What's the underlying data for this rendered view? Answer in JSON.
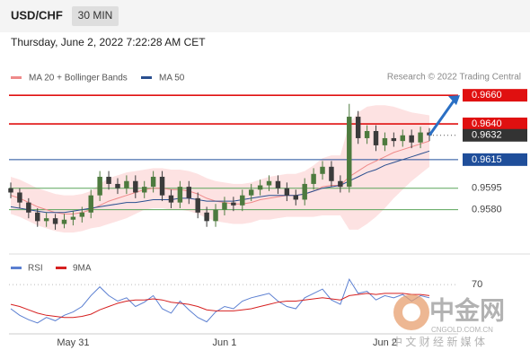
{
  "chart_data": {
    "type": "candlestick",
    "title": "USD/CHF",
    "timeframe": "30 MIN",
    "subtitle": "Thursday, June 2, 2022 7:22:28 AM CET",
    "credit": "Research © 2022 Trading Central",
    "categories": [
      null,
      null,
      null,
      null,
      null,
      null,
      null,
      "May 31",
      null,
      null,
      null,
      null,
      null,
      null,
      null,
      null,
      null,
      null,
      null,
      null,
      null,
      null,
      null,
      null,
      "Jun 1",
      null,
      null,
      null,
      null,
      null,
      null,
      null,
      null,
      null,
      null,
      null,
      null,
      null,
      null,
      null,
      null,
      null,
      "Jun 2",
      null,
      null,
      null,
      null,
      null
    ],
    "candles": [
      [
        0.9595,
        0.9599,
        0.9588,
        0.9592
      ],
      [
        0.9592,
        0.9595,
        0.9581,
        0.9585
      ],
      [
        0.9585,
        0.9588,
        0.9574,
        0.9578
      ],
      [
        0.9578,
        0.9581,
        0.9568,
        0.9572
      ],
      [
        0.9572,
        0.9578,
        0.9568,
        0.9574
      ],
      [
        0.9574,
        0.9577,
        0.9566,
        0.957
      ],
      [
        0.957,
        0.9577,
        0.9567,
        0.9573
      ],
      [
        0.9573,
        0.9579,
        0.9569,
        0.9575
      ],
      [
        0.9575,
        0.9582,
        0.9571,
        0.9578
      ],
      [
        0.9578,
        0.9594,
        0.9574,
        0.959
      ],
      [
        0.959,
        0.9607,
        0.9586,
        0.9603
      ],
      [
        0.9603,
        0.9607,
        0.9594,
        0.9598
      ],
      [
        0.9598,
        0.9602,
        0.9591,
        0.9595
      ],
      [
        0.9595,
        0.9604,
        0.9591,
        0.96
      ],
      [
        0.96,
        0.9604,
        0.9588,
        0.9592
      ],
      [
        0.9592,
        0.96,
        0.9588,
        0.9596
      ],
      [
        0.9596,
        0.9607,
        0.9592,
        0.9603
      ],
      [
        0.9603,
        0.9607,
        0.9586,
        0.959
      ],
      [
        0.959,
        0.9594,
        0.9581,
        0.9585
      ],
      [
        0.9585,
        0.96,
        0.9581,
        0.9596
      ],
      [
        0.9596,
        0.96,
        0.9584,
        0.9588
      ],
      [
        0.9588,
        0.9592,
        0.9574,
        0.9578
      ],
      [
        0.9578,
        0.9582,
        0.9568,
        0.9572
      ],
      [
        0.9572,
        0.9584,
        0.9568,
        0.958
      ],
      [
        0.958,
        0.9589,
        0.9576,
        0.9585
      ],
      [
        0.9585,
        0.9589,
        0.9579,
        0.9583
      ],
      [
        0.9583,
        0.9594,
        0.9579,
        0.959
      ],
      [
        0.959,
        0.9598,
        0.9586,
        0.9594
      ],
      [
        0.9594,
        0.9601,
        0.959,
        0.9597
      ],
      [
        0.9597,
        0.9604,
        0.9593,
        0.96
      ],
      [
        0.96,
        0.9604,
        0.9591,
        0.9595
      ],
      [
        0.9595,
        0.9599,
        0.9586,
        0.959
      ],
      [
        0.959,
        0.9594,
        0.9583,
        0.9587
      ],
      [
        0.9587,
        0.9602,
        0.9583,
        0.9598
      ],
      [
        0.9598,
        0.9609,
        0.9594,
        0.9605
      ],
      [
        0.9605,
        0.9614,
        0.9601,
        0.961
      ],
      [
        0.961,
        0.9614,
        0.9596,
        0.96
      ],
      [
        0.96,
        0.9604,
        0.9592,
        0.9596
      ],
      [
        0.9596,
        0.9654,
        0.9592,
        0.9645
      ],
      [
        0.9645,
        0.9649,
        0.9626,
        0.963
      ],
      [
        0.963,
        0.9639,
        0.9626,
        0.9635
      ],
      [
        0.9635,
        0.9639,
        0.9621,
        0.9625
      ],
      [
        0.9625,
        0.9634,
        0.9621,
        0.963
      ],
      [
        0.963,
        0.9634,
        0.9624,
        0.9628
      ],
      [
        0.9628,
        0.9636,
        0.9624,
        0.9632
      ],
      [
        0.9632,
        0.9636,
        0.9623,
        0.9627
      ],
      [
        0.9627,
        0.9638,
        0.9623,
        0.9634
      ],
      [
        0.9634,
        0.9637,
        0.9628,
        0.9632
      ]
    ],
    "up_color": "#4d7a3e",
    "down_color": "#3b3b3b",
    "ylim": [
      0.9549,
      0.9667
    ],
    "overlays": [
      {
        "name": "MA 20 + Bollinger Bands",
        "color": "#ef8a8a",
        "band_color": "#fde2e2",
        "values": [
          0.959,
          0.9588,
          0.9585,
          0.9582,
          0.958,
          0.9578,
          0.9577,
          0.9577,
          0.9578,
          0.958,
          0.9583,
          0.9586,
          0.9588,
          0.959,
          0.9592,
          0.9594,
          0.9595,
          0.9595,
          0.9594,
          0.9594,
          0.9593,
          0.9591,
          0.9588,
          0.9586,
          0.9585,
          0.9584,
          0.9584,
          0.9585,
          0.9587,
          0.9588,
          0.9589,
          0.959,
          0.959,
          0.9591,
          0.9593,
          0.9596,
          0.9597,
          0.9597,
          0.9603,
          0.9607,
          0.9611,
          0.9614,
          0.9617,
          0.962,
          0.9622,
          0.9624,
          0.9626,
          0.9628
        ],
        "upper": [
          0.9603,
          0.9601,
          0.9598,
          0.9595,
          0.9593,
          0.9591,
          0.959,
          0.959,
          0.9591,
          0.9593,
          0.9598,
          0.9602,
          0.9604,
          0.9606,
          0.9607,
          0.9608,
          0.9609,
          0.9609,
          0.9608,
          0.9608,
          0.9607,
          0.9605,
          0.9602,
          0.96,
          0.9599,
          0.9598,
          0.9598,
          0.9599,
          0.9601,
          0.9603,
          0.9604,
          0.9605,
          0.9605,
          0.9607,
          0.9611,
          0.9616,
          0.9618,
          0.9618,
          0.964,
          0.9648,
          0.9652,
          0.9653,
          0.9653,
          0.9652,
          0.965,
          0.9648,
          0.9647,
          0.9646
        ],
        "lower": [
          0.9577,
          0.9575,
          0.9572,
          0.9569,
          0.9567,
          0.9565,
          0.9564,
          0.9564,
          0.9565,
          0.9567,
          0.9568,
          0.957,
          0.9572,
          0.9574,
          0.9577,
          0.958,
          0.9581,
          0.9581,
          0.958,
          0.958,
          0.9579,
          0.9577,
          0.9574,
          0.9572,
          0.9571,
          0.957,
          0.957,
          0.9571,
          0.9573,
          0.9573,
          0.9574,
          0.9575,
          0.9575,
          0.9575,
          0.9575,
          0.9576,
          0.9576,
          0.9576,
          0.9566,
          0.9566,
          0.957,
          0.9575,
          0.9581,
          0.9588,
          0.9594,
          0.96,
          0.9605,
          0.961
        ]
      },
      {
        "name": "MA 50",
        "color": "#2a4f8f",
        "values": [
          0.9582,
          0.9581,
          0.958,
          0.9579,
          0.9578,
          0.9578,
          0.9578,
          0.9579,
          0.958,
          0.9581,
          0.9582,
          0.9583,
          0.9584,
          0.9585,
          0.9585,
          0.9586,
          0.9587,
          0.9587,
          0.9587,
          0.9588,
          0.9588,
          0.9587,
          0.9586,
          0.9586,
          0.9586,
          0.9586,
          0.9587,
          0.9588,
          0.9589,
          0.959,
          0.959,
          0.959,
          0.959,
          0.9591,
          0.9593,
          0.9595,
          0.9596,
          0.9597,
          0.96,
          0.9603,
          0.9606,
          0.9608,
          0.9611,
          0.9613,
          0.9615,
          0.9617,
          0.9619,
          0.9621
        ]
      }
    ],
    "levels": [
      {
        "value": 0.966,
        "label": "0.9660",
        "color": "#e01010",
        "boxed": true
      },
      {
        "value": 0.964,
        "label": "0.9640",
        "color": "#e01010",
        "boxed": true
      },
      {
        "value": 0.9632,
        "label": "0.9632",
        "color": "#333333",
        "boxed": true,
        "dashed": true
      },
      {
        "value": 0.9615,
        "label": "0.9615",
        "color": "#1f4e9a",
        "boxed": true
      },
      {
        "value": 0.9595,
        "label": "0.9595",
        "color": "#5aa55a",
        "boxed": false
      },
      {
        "value": 0.958,
        "label": "0.9580",
        "color": "#5aa55a",
        "boxed": false
      }
    ],
    "target": 0.966,
    "rsi": {
      "ylim": [
        25,
        80
      ],
      "yticks": [
        70
      ],
      "series": [
        {
          "name": "RSI",
          "color": "#5b7fd1",
          "values": [
            48,
            42,
            38,
            35,
            40,
            37,
            42,
            45,
            50,
            60,
            68,
            60,
            55,
            58,
            50,
            54,
            60,
            48,
            44,
            55,
            47,
            40,
            36,
            45,
            50,
            48,
            55,
            58,
            60,
            62,
            55,
            50,
            48,
            58,
            62,
            66,
            56,
            52,
            75,
            62,
            64,
            56,
            60,
            58,
            61,
            55,
            60,
            58
          ]
        },
        {
          "name": "9MA",
          "color": "#d62020",
          "values": [
            52,
            50,
            47,
            44,
            42,
            41,
            40,
            40,
            41,
            43,
            47,
            50,
            53,
            55,
            56,
            56,
            57,
            56,
            54,
            53,
            52,
            50,
            47,
            46,
            46,
            46,
            47,
            48,
            50,
            52,
            54,
            55,
            55,
            56,
            57,
            58,
            57,
            56,
            60,
            61,
            62,
            61,
            62,
            62,
            62,
            61,
            61,
            60
          ]
        }
      ]
    }
  },
  "watermark": {
    "brand": "中金网",
    "domain": "CNGOLD.COM.CN",
    "slogan": "中 文 财 经 新 媒 体"
  }
}
